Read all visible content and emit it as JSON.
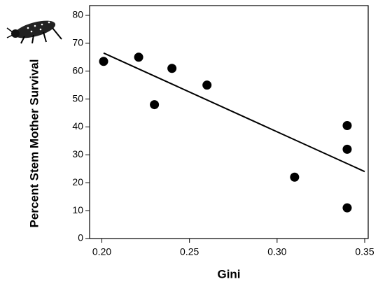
{
  "chart_data": {
    "type": "scatter",
    "x_label": "Gini",
    "y_label": "Percent Stem Mother Survival",
    "x": [
      0.201,
      0.221,
      0.23,
      0.24,
      0.26,
      0.31,
      0.34,
      0.34,
      0.34
    ],
    "values": [
      63.5,
      65,
      48,
      61,
      55,
      22,
      40.5,
      32,
      11
    ],
    "color": "#000000",
    "trendline": {
      "x": [
        0.201,
        0.35
      ],
      "values": [
        66.5,
        24
      ]
    },
    "xlim": [
      0.193,
      0.352
    ],
    "ylim": [
      0,
      83.5
    ],
    "xticks": [
      {
        "value": 0.2,
        "label": "0.20"
      },
      0.25,
      {
        "value": 0.3,
        "label": "0.30"
      },
      0.35
    ],
    "yticks": [
      0,
      10,
      20,
      30,
      40,
      50,
      60,
      70,
      80
    ],
    "grid": false
  }
}
